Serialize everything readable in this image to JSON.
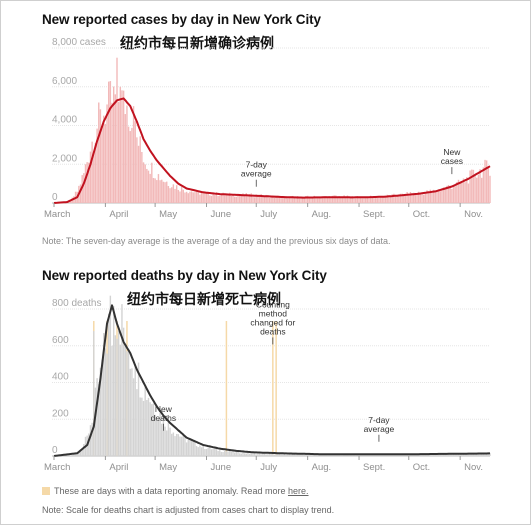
{
  "cases": {
    "title": "New reported cases by day in New York City",
    "subtitle_cn": "纽约市每日新增确诊病例",
    "note": "Note: The seven-day average is the average of a day and the previous six days of data.",
    "colors": {
      "bars": "#f2b9b9",
      "line": "#c1121f"
    }
  },
  "deaths": {
    "title": "New reported deaths by day in New York City",
    "subtitle_cn": "纽约市每日新增死亡病例",
    "legend_note": "These are days with a data reporting anomaly. Read more",
    "legend_link": "here.",
    "note": "Note: Scale for deaths chart is adjusted from cases chart to display trend.",
    "colors": {
      "bars": "#d3d3d3",
      "line": "#333333",
      "anomaly": "#f5d9a8"
    }
  },
  "chart_data": [
    {
      "type": "bar",
      "title": "New reported cases by day in New York City",
      "x_ticks": [
        "March",
        "April",
        "May",
        "June",
        "July",
        "Aug.",
        "Sept.",
        "Oct.",
        "Nov."
      ],
      "y_ticks": [
        "8,000 cases",
        "6,000",
        "4,000",
        "2,000",
        "0"
      ],
      "ylim": [
        0,
        8000
      ],
      "grid": true,
      "series": [
        {
          "name": "New reported cases",
          "render": "bars",
          "points": [
            [
              0,
              0
            ],
            [
              5,
              20
            ],
            [
              10,
              120
            ],
            [
              14,
              600
            ],
            [
              18,
              1500
            ],
            [
              22,
              2900
            ],
            [
              26,
              4000
            ],
            [
              30,
              4700
            ],
            [
              32,
              4900
            ],
            [
              34,
              5200
            ],
            [
              36,
              5300
            ],
            [
              38,
              5400
            ],
            [
              40,
              5300
            ],
            [
              42,
              5300
            ],
            [
              44,
              5000
            ],
            [
              46,
              4600
            ],
            [
              48,
              4000
            ],
            [
              50,
              3300
            ],
            [
              52,
              2900
            ],
            [
              55,
              2200
            ],
            [
              58,
              1900
            ],
            [
              62,
              1500
            ],
            [
              66,
              1200
            ],
            [
              70,
              1000
            ],
            [
              75,
              800
            ],
            [
              80,
              650
            ],
            [
              90,
              500
            ],
            [
              100,
              450
            ],
            [
              110,
              420
            ],
            [
              120,
              400
            ],
            [
              130,
              350
            ],
            [
              140,
              300
            ],
            [
              150,
              300
            ],
            [
              160,
              310
            ],
            [
              170,
              340
            ],
            [
              180,
              300
            ],
            [
              190,
              300
            ],
            [
              200,
              350
            ],
            [
              210,
              420
            ],
            [
              215,
              480
            ],
            [
              220,
              520
            ],
            [
              225,
              560
            ],
            [
              230,
              620
            ],
            [
              235,
              760
            ],
            [
              240,
              900
            ],
            [
              245,
              1000
            ],
            [
              250,
              1300
            ],
            [
              255,
              1550
            ],
            [
              260,
              1800
            ],
            [
              263,
              1850
            ]
          ],
          "spikes": [
            [
              38,
              7500
            ],
            [
              40,
              6000
            ],
            [
              42,
              5800
            ],
            [
              48,
              5000
            ]
          ]
        },
        {
          "name": "7-day average",
          "render": "line",
          "points": [
            [
              0,
              0
            ],
            [
              8,
              50
            ],
            [
              14,
              300
            ],
            [
              18,
              1000
            ],
            [
              22,
              2000
            ],
            [
              26,
              3200
            ],
            [
              30,
              4200
            ],
            [
              34,
              4900
            ],
            [
              38,
              5300
            ],
            [
              42,
              5400
            ],
            [
              46,
              5000
            ],
            [
              50,
              4200
            ],
            [
              54,
              3300
            ],
            [
              58,
              2700
            ],
            [
              62,
              2200
            ],
            [
              66,
              1800
            ],
            [
              70,
              1400
            ],
            [
              75,
              1000
            ],
            [
              80,
              750
            ],
            [
              90,
              550
            ],
            [
              100,
              460
            ],
            [
              110,
              420
            ],
            [
              120,
              380
            ],
            [
              130,
              340
            ],
            [
              140,
              300
            ],
            [
              150,
              280
            ],
            [
              160,
              290
            ],
            [
              170,
              300
            ],
            [
              180,
              290
            ],
            [
              190,
              300
            ],
            [
              200,
              330
            ],
            [
              210,
              400
            ],
            [
              220,
              480
            ],
            [
              230,
              600
            ],
            [
              240,
              850
            ],
            [
              250,
              1250
            ],
            [
              257,
              1600
            ],
            [
              263,
              1900
            ]
          ]
        }
      ],
      "annotations": [
        {
          "text": [
            "7-day",
            "average"
          ],
          "x": 122,
          "y": 1150
        },
        {
          "text": [
            "New",
            "cases"
          ],
          "x": 240,
          "y": 1800
        }
      ]
    },
    {
      "type": "bar",
      "title": "New reported deaths by day in New York City",
      "x_ticks": [
        "March",
        "April",
        "May",
        "June",
        "July",
        "Aug.",
        "Sept.",
        "Oct.",
        "Nov."
      ],
      "y_ticks": [
        "800 deaths",
        "600",
        "400",
        "200",
        "0"
      ],
      "ylim": [
        0,
        800
      ],
      "grid": true,
      "series": [
        {
          "name": "New reported deaths",
          "render": "bars",
          "points": [
            [
              0,
              0
            ],
            [
              10,
              2
            ],
            [
              15,
              20
            ],
            [
              20,
              100
            ],
            [
              24,
              250
            ],
            [
              28,
              450
            ],
            [
              32,
              650
            ],
            [
              34,
              760
            ],
            [
              36,
              810
            ],
            [
              38,
              790
            ],
            [
              40,
              750
            ],
            [
              42,
              680
            ],
            [
              44,
              600
            ],
            [
              46,
              550
            ],
            [
              50,
              460
            ],
            [
              54,
              380
            ],
            [
              58,
              320
            ],
            [
              62,
              250
            ],
            [
              66,
              200
            ],
            [
              70,
              160
            ],
            [
              75,
              120
            ],
            [
              80,
              90
            ],
            [
              90,
              50
            ],
            [
              100,
              30
            ],
            [
              110,
              20
            ],
            [
              120,
              12
            ],
            [
              140,
              8
            ],
            [
              160,
              6
            ],
            [
              180,
              6
            ],
            [
              200,
              8
            ],
            [
              220,
              10
            ],
            [
              240,
              12
            ],
            [
              263,
              15
            ]
          ],
          "spikes": [
            [
              24,
              680
            ],
            [
              28,
              480
            ],
            [
              35,
              600
            ],
            [
              39,
              680
            ],
            [
              44,
              570
            ],
            [
              49,
              500
            ]
          ]
        },
        {
          "name": "7-day average",
          "render": "line",
          "points": [
            [
              0,
              0
            ],
            [
              14,
              15
            ],
            [
              20,
              60
            ],
            [
              24,
              160
            ],
            [
              28,
              420
            ],
            [
              32,
              720
            ],
            [
              35,
              820
            ],
            [
              38,
              720
            ],
            [
              42,
              620
            ],
            [
              46,
              560
            ],
            [
              50,
              470
            ],
            [
              54,
              400
            ],
            [
              58,
              330
            ],
            [
              62,
              270
            ],
            [
              66,
              220
            ],
            [
              70,
              180
            ],
            [
              75,
              140
            ],
            [
              80,
              100
            ],
            [
              90,
              60
            ],
            [
              100,
              40
            ],
            [
              110,
              28
            ],
            [
              120,
              20
            ],
            [
              140,
              14
            ],
            [
              160,
              10
            ],
            [
              180,
              9
            ],
            [
              200,
              9
            ],
            [
              220,
              10
            ],
            [
              240,
              12
            ],
            [
              263,
              14
            ]
          ]
        }
      ],
      "anomaly_days": [
        24,
        32,
        38,
        44,
        104,
        132,
        134
      ],
      "annotations": [
        {
          "text": [
            "New",
            "deaths"
          ],
          "x": 66,
          "y": 170
        },
        {
          "text": [
            "Counting",
            "method",
            "changed for",
            "deaths"
          ],
          "x": 132,
          "y": 640
        },
        {
          "text": [
            "7-day",
            "average"
          ],
          "x": 196,
          "y": 110
        }
      ]
    }
  ]
}
